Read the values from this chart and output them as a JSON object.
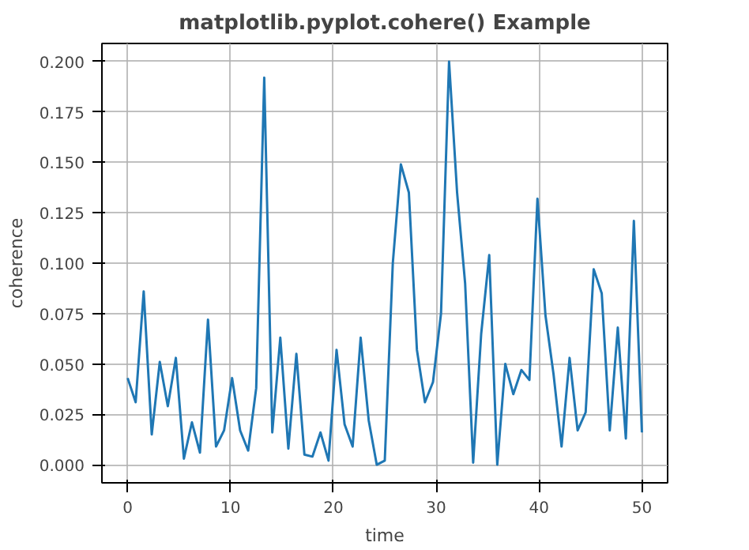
{
  "chart_data": {
    "type": "line",
    "title": "matplotlib.pyplot.cohere() Example",
    "xlabel": "time",
    "ylabel": "coherence",
    "x": [
      0,
      0.78125,
      1.5625,
      2.34375,
      3.125,
      3.90625,
      4.6875,
      5.46875,
      6.25,
      7.03125,
      7.8125,
      8.59375,
      9.375,
      10.15625,
      10.9375,
      11.71875,
      12.5,
      13.28125,
      14.0625,
      14.84375,
      15.625,
      16.40625,
      17.1875,
      17.96875,
      18.75,
      19.53125,
      20.3125,
      21.09375,
      21.875,
      22.65625,
      23.4375,
      24.21875,
      25,
      25.78125,
      26.5625,
      27.34375,
      28.125,
      28.90625,
      29.6875,
      30.46875,
      31.25,
      32.03125,
      32.8125,
      33.59375,
      34.375,
      35.15625,
      35.9375,
      36.71875,
      37.5,
      38.28125,
      39.0625,
      39.84375,
      40.625,
      41.40625,
      42.1875,
      42.96875,
      43.75,
      44.53125,
      45.3125,
      46.09375,
      46.875,
      47.65625,
      48.4375,
      49.21875,
      50
    ],
    "series": [
      {
        "color": "#1f77b4",
        "values": [
          0.043,
          0.031,
          0.086,
          0.015,
          0.051,
          0.029,
          0.053,
          0.003,
          0.021,
          0.006,
          0.072,
          0.009,
          0.017,
          0.043,
          0.017,
          0.007,
          0.038,
          0.192,
          0.016,
          0.063,
          0.008,
          0.055,
          0.005,
          0.004,
          0.016,
          0.002,
          0.057,
          0.02,
          0.009,
          0.063,
          0.022,
          0.0,
          0.002,
          0.1,
          0.149,
          0.135,
          0.057,
          0.031,
          0.041,
          0.075,
          0.2,
          0.135,
          0.09,
          0.001,
          0.065,
          0.104,
          0.0,
          0.05,
          0.035,
          0.047,
          0.042,
          0.132,
          0.074,
          0.045,
          0.009,
          0.053,
          0.017,
          0.026,
          0.097,
          0.085,
          0.017,
          0.068,
          0.013,
          0.121,
          0.016
        ]
      }
    ],
    "xlim": [
      -2.5,
      52.5
    ],
    "ylim": [
      -0.009,
      0.209
    ],
    "xticks": [
      0,
      10,
      20,
      30,
      40,
      50
    ],
    "yticks": [
      {
        "value": 0,
        "label": "0.000"
      },
      {
        "value": 0.025,
        "label": "0.025"
      },
      {
        "value": 0.05,
        "label": "0.050"
      },
      {
        "value": 0.075,
        "label": "0.075"
      },
      {
        "value": 0.1,
        "label": "0.100"
      },
      {
        "value": 0.125,
        "label": "0.125"
      },
      {
        "value": 0.15,
        "label": "0.150"
      },
      {
        "value": 0.175,
        "label": "0.175"
      },
      {
        "value": 0.2,
        "label": "0.200"
      }
    ],
    "grid": true,
    "line_style": "solid"
  }
}
